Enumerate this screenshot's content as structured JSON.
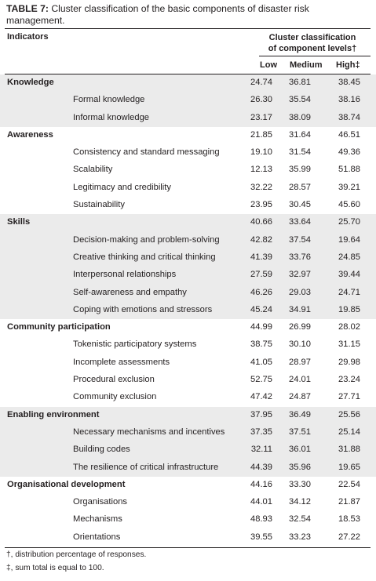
{
  "table": {
    "title_label": "TABLE 7:",
    "title_text": " Cluster classification of the basic components of disaster risk management.",
    "header_indicators": "Indicators",
    "header_cluster_line1": "Cluster classification",
    "header_cluster_line2": "of component levels†",
    "header_low": "Low",
    "header_medium": "Medium",
    "header_high": "High‡",
    "rows": [
      {
        "kind": "cat",
        "label": "Knowledge",
        "low": "24.74",
        "medium": "36.81",
        "high": "38.45"
      },
      {
        "kind": "item",
        "label": "Formal knowledge",
        "low": "26.30",
        "medium": "35.54",
        "high": "38.16"
      },
      {
        "kind": "item",
        "label": "Informal knowledge",
        "low": "23.17",
        "medium": "38.09",
        "high": "38.74"
      },
      {
        "kind": "cat",
        "label": "Awareness",
        "low": "21.85",
        "medium": "31.64",
        "high": "46.51"
      },
      {
        "kind": "item",
        "label": "Consistency and standard messaging",
        "low": "19.10",
        "medium": "31.54",
        "high": "49.36"
      },
      {
        "kind": "item",
        "label": "Scalability",
        "low": "12.13",
        "medium": "35.99",
        "high": "51.88"
      },
      {
        "kind": "item",
        "label": "Legitimacy and credibility",
        "low": "32.22",
        "medium": "28.57",
        "high": "39.21"
      },
      {
        "kind": "item",
        "label": "Sustainability",
        "low": "23.95",
        "medium": "30.45",
        "high": "45.60"
      },
      {
        "kind": "cat",
        "label": "Skills",
        "low": "40.66",
        "medium": "33.64",
        "high": "25.70"
      },
      {
        "kind": "item",
        "label": "Decision-making and problem-solving",
        "low": "42.82",
        "medium": "37.54",
        "high": "19.64"
      },
      {
        "kind": "item",
        "label": "Creative thinking and critical thinking",
        "low": "41.39",
        "medium": "33.76",
        "high": "24.85"
      },
      {
        "kind": "item",
        "label": "Interpersonal relationships",
        "low": "27.59",
        "medium": "32.97",
        "high": "39.44"
      },
      {
        "kind": "item",
        "label": "Self-awareness and empathy",
        "low": "46.26",
        "medium": "29.03",
        "high": "24.71"
      },
      {
        "kind": "item",
        "label": "Coping with emotions and stressors",
        "low": "45.24",
        "medium": "34.91",
        "high": "19.85"
      },
      {
        "kind": "cat",
        "label": "Community participation",
        "low": "44.99",
        "medium": "26.99",
        "high": "28.02"
      },
      {
        "kind": "item",
        "label": "Tokenistic participatory systems",
        "low": "38.75",
        "medium": "30.10",
        "high": "31.15"
      },
      {
        "kind": "item",
        "label": "Incomplete assessments",
        "low": "41.05",
        "medium": "28.97",
        "high": "29.98"
      },
      {
        "kind": "item",
        "label": "Procedural exclusion",
        "low": "52.75",
        "medium": "24.01",
        "high": "23.24"
      },
      {
        "kind": "item",
        "label": "Community exclusion",
        "low": "47.42",
        "medium": "24.87",
        "high": "27.71"
      },
      {
        "kind": "cat",
        "label": "Enabling environment",
        "low": "37.95",
        "medium": "36.49",
        "high": "25.56"
      },
      {
        "kind": "item",
        "label": "Necessary mechanisms and incentives",
        "low": "37.35",
        "medium": "37.51",
        "high": "25.14"
      },
      {
        "kind": "item",
        "label": "Building codes",
        "low": "32.11",
        "medium": "36.01",
        "high": "31.88"
      },
      {
        "kind": "item",
        "label": "The resilience of critical infrastructure",
        "low": "44.39",
        "medium": "35.96",
        "high": "19.65"
      },
      {
        "kind": "cat",
        "label": "Organisational development",
        "low": "44.16",
        "medium": "33.30",
        "high": "22.54"
      },
      {
        "kind": "item",
        "label": "Organisations",
        "low": "44.01",
        "medium": "34.12",
        "high": "21.87"
      },
      {
        "kind": "item",
        "label": "Mechanisms",
        "low": "48.93",
        "medium": "32.54",
        "high": "18.53"
      },
      {
        "kind": "item",
        "label": "Orientations",
        "low": "39.55",
        "medium": "33.23",
        "high": "27.22"
      }
    ],
    "footnote_1": "†, distribution percentage of responses.",
    "footnote_2": "‡, sum total is equal to 100."
  }
}
